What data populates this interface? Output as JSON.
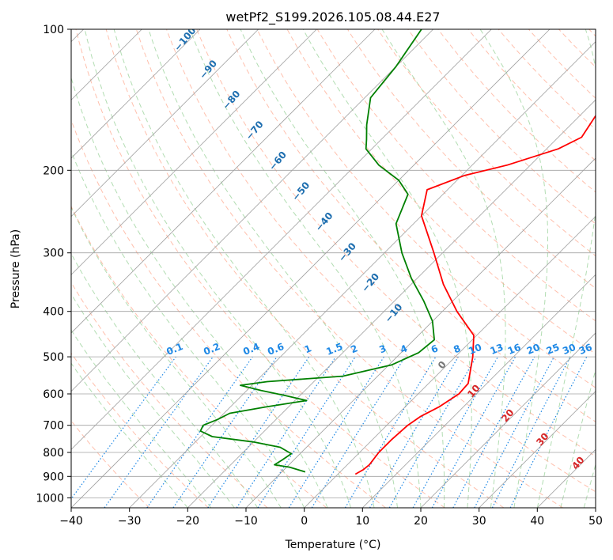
{
  "chart_data": {
    "type": "line",
    "subtype": "skew-t log-p",
    "title": "wetPf2_S199.2026.105.08.44.E27",
    "xlabel": "Temperature (°C)",
    "ylabel": "Pressure (hPa)",
    "xlim": [
      -40,
      50
    ],
    "ylim": [
      1050,
      100
    ],
    "yscale": "log",
    "grid": true,
    "x_ticks": [
      -40,
      -30,
      -20,
      -10,
      0,
      10,
      20,
      30,
      40,
      50
    ],
    "y_ticks": [
      100,
      200,
      300,
      400,
      500,
      600,
      700,
      800,
      900,
      1000
    ],
    "x_tick_labels": [
      "−40",
      "−30",
      "−20",
      "−10",
      "0",
      "10",
      "20",
      "30",
      "40",
      "50"
    ],
    "y_tick_labels": [
      "100",
      "200",
      "300",
      "400",
      "500",
      "600",
      "700",
      "800",
      "900",
      "1000"
    ],
    "colors": {
      "temperature": "#ff0000",
      "dewpoint": "#008000",
      "isotherm": "#a0a0a0",
      "dry_adiabat": "#ff8c69",
      "moist_adiabat": "#66bb66",
      "mixing_ratio": "#1e88e5"
    },
    "series": [
      {
        "role": "temperature",
        "points": [
          {
            "p": 890,
            "t": 3.0
          },
          {
            "p": 870,
            "t": 3.6
          },
          {
            "p": 850,
            "t": 3.8
          },
          {
            "p": 800,
            "t": 3.3
          },
          {
            "p": 750,
            "t": 3.3
          },
          {
            "p": 700,
            "t": 3.6
          },
          {
            "p": 670,
            "t": 4.3
          },
          {
            "p": 640,
            "t": 5.8
          },
          {
            "p": 600,
            "t": 7.0
          },
          {
            "p": 570,
            "t": 6.8
          },
          {
            "p": 500,
            "t": 3.0
          },
          {
            "p": 450,
            "t": -0.5
          },
          {
            "p": 400,
            "t": -7.5
          },
          {
            "p": 350,
            "t": -14.5
          },
          {
            "p": 300,
            "t": -21.5
          },
          {
            "p": 250,
            "t": -30.0
          },
          {
            "p": 220,
            "t": -33.5
          },
          {
            "p": 205,
            "t": -29.5
          },
          {
            "p": 195,
            "t": -24.0
          },
          {
            "p": 180,
            "t": -18.0
          },
          {
            "p": 170,
            "t": -16.0
          },
          {
            "p": 150,
            "t": -17.5
          },
          {
            "p": 130,
            "t": -20.0
          },
          {
            "p": 112,
            "t": -23.0
          },
          {
            "p": 100,
            "t": -25.5
          }
        ]
      },
      {
        "role": "dewpoint",
        "points": [
          {
            "p": 880,
            "t": -6.0
          },
          {
            "p": 860,
            "t": -9.5
          },
          {
            "p": 850,
            "t": -12.5
          },
          {
            "p": 830,
            "t": -12.0
          },
          {
            "p": 805,
            "t": -11.5
          },
          {
            "p": 780,
            "t": -14.5
          },
          {
            "p": 760,
            "t": -20.0
          },
          {
            "p": 740,
            "t": -28.0
          },
          {
            "p": 720,
            "t": -31.0
          },
          {
            "p": 700,
            "t": -31.5
          },
          {
            "p": 680,
            "t": -30.0
          },
          {
            "p": 660,
            "t": -29.0
          },
          {
            "p": 640,
            "t": -24.0
          },
          {
            "p": 620,
            "t": -18.0
          },
          {
            "p": 605,
            "t": -22.5
          },
          {
            "p": 590,
            "t": -27.5
          },
          {
            "p": 575,
            "t": -32.0
          },
          {
            "p": 565,
            "t": -28.0
          },
          {
            "p": 550,
            "t": -16.0
          },
          {
            "p": 520,
            "t": -9.5
          },
          {
            "p": 490,
            "t": -7.0
          },
          {
            "p": 460,
            "t": -6.5
          },
          {
            "p": 420,
            "t": -10.0
          },
          {
            "p": 380,
            "t": -15.0
          },
          {
            "p": 340,
            "t": -21.0
          },
          {
            "p": 300,
            "t": -27.0
          },
          {
            "p": 260,
            "t": -33.0
          },
          {
            "p": 225,
            "t": -36.0
          },
          {
            "p": 210,
            "t": -40.0
          },
          {
            "p": 195,
            "t": -46.0
          },
          {
            "p": 180,
            "t": -51.0
          },
          {
            "p": 172,
            "t": -52.5
          },
          {
            "p": 160,
            "t": -55.0
          },
          {
            "p": 140,
            "t": -59.0
          },
          {
            "p": 120,
            "t": -60.0
          },
          {
            "p": 100,
            "t": -62.0
          }
        ]
      }
    ],
    "dry_adiabat_labels": [
      "−100",
      "−90",
      "−80",
      "−70",
      "−60",
      "−50",
      "−40",
      "−30",
      "−20",
      "−10"
    ],
    "moist_adiabat_labels": [
      "0",
      "10",
      "20",
      "30",
      "40"
    ],
    "mixing_ratio_labels": [
      "0.1",
      "0.2",
      "0.4",
      "0.6",
      "1",
      "1.5",
      "2",
      "3",
      "4",
      "6",
      "8",
      "10",
      "13",
      "16",
      "20",
      "25",
      "30",
      "36"
    ]
  }
}
